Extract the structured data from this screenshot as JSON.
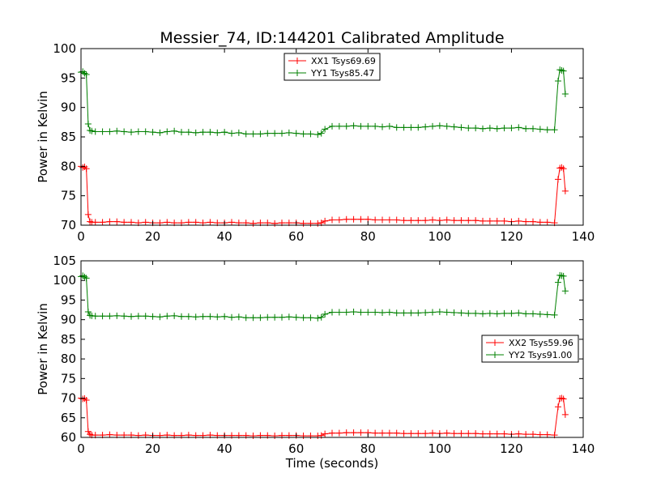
{
  "chart_data": [
    {
      "type": "line",
      "title": "Messier_74, ID:144201 Calibrated Amplitude",
      "xlabel": "",
      "ylabel": "Power in Kelvin",
      "xlim": [
        0,
        140
      ],
      "ylim": [
        70,
        100
      ],
      "xticks": [
        0,
        20,
        40,
        60,
        80,
        100,
        120,
        140
      ],
      "yticks": [
        70,
        75,
        80,
        85,
        90,
        95,
        100
      ],
      "grid": false,
      "legend_position": "top-center",
      "series": [
        {
          "name": "XX1 Tsys69.69",
          "color": "#ff0000",
          "marker": "plus",
          "x": [
            0,
            0.5,
            1,
            1.5,
            2,
            2.5,
            3,
            4,
            6,
            8,
            10,
            12,
            14,
            16,
            18,
            20,
            22,
            24,
            26,
            28,
            30,
            32,
            34,
            36,
            38,
            40,
            42,
            44,
            46,
            48,
            50,
            52,
            54,
            56,
            58,
            60,
            62,
            64,
            66,
            67,
            68,
            70,
            72,
            74,
            76,
            78,
            80,
            82,
            84,
            86,
            88,
            90,
            92,
            94,
            96,
            98,
            100,
            102,
            104,
            106,
            108,
            110,
            112,
            114,
            116,
            118,
            120,
            122,
            124,
            126,
            128,
            130,
            132,
            133,
            133.5,
            134,
            134.5,
            135
          ],
          "y": [
            80,
            79.8,
            79.9,
            79.6,
            71.8,
            70.6,
            70.5,
            70.5,
            70.5,
            70.6,
            70.6,
            70.5,
            70.5,
            70.4,
            70.5,
            70.4,
            70.4,
            70.5,
            70.4,
            70.4,
            70.5,
            70.5,
            70.4,
            70.5,
            70.4,
            70.4,
            70.5,
            70.4,
            70.4,
            70.3,
            70.4,
            70.4,
            70.3,
            70.4,
            70.4,
            70.4,
            70.3,
            70.3,
            70.3,
            70.4,
            70.7,
            70.9,
            70.9,
            71.0,
            71.0,
            71.0,
            71.0,
            70.9,
            70.9,
            70.9,
            70.9,
            70.8,
            70.8,
            70.8,
            70.8,
            70.9,
            70.8,
            70.9,
            70.8,
            70.8,
            70.8,
            70.8,
            70.7,
            70.7,
            70.7,
            70.7,
            70.6,
            70.7,
            70.6,
            70.6,
            70.5,
            70.5,
            70.4,
            77.8,
            79.7,
            79.8,
            79.6,
            75.8
          ]
        },
        {
          "name": "YY1 Tsys85.47",
          "color": "#008000",
          "marker": "plus",
          "x": [
            0,
            0.5,
            1,
            1.5,
            2,
            2.5,
            3,
            4,
            6,
            8,
            10,
            12,
            14,
            16,
            18,
            20,
            22,
            24,
            26,
            28,
            30,
            32,
            34,
            36,
            38,
            40,
            42,
            44,
            46,
            48,
            50,
            52,
            54,
            56,
            58,
            60,
            62,
            64,
            66,
            67,
            68,
            70,
            72,
            74,
            76,
            78,
            80,
            82,
            84,
            86,
            88,
            90,
            92,
            94,
            96,
            98,
            100,
            102,
            104,
            106,
            108,
            110,
            112,
            114,
            116,
            118,
            120,
            122,
            124,
            126,
            128,
            130,
            132,
            133,
            133.5,
            134,
            134.5,
            135
          ],
          "y": [
            96,
            96.1,
            95.8,
            95.6,
            87.2,
            86.1,
            86.0,
            85.9,
            85.9,
            85.9,
            86.0,
            85.9,
            85.8,
            85.9,
            85.9,
            85.8,
            85.7,
            85.9,
            86.0,
            85.8,
            85.8,
            85.7,
            85.8,
            85.8,
            85.7,
            85.8,
            85.6,
            85.7,
            85.5,
            85.5,
            85.5,
            85.6,
            85.6,
            85.6,
            85.7,
            85.6,
            85.5,
            85.5,
            85.4,
            85.6,
            86.3,
            86.8,
            86.8,
            86.8,
            86.9,
            86.8,
            86.8,
            86.8,
            86.7,
            86.8,
            86.6,
            86.6,
            86.6,
            86.6,
            86.7,
            86.8,
            86.9,
            86.8,
            86.7,
            86.6,
            86.5,
            86.5,
            86.4,
            86.5,
            86.4,
            86.5,
            86.5,
            86.6,
            86.4,
            86.4,
            86.3,
            86.2,
            86.2,
            94.5,
            96.4,
            96.3,
            96.2,
            92.3
          ]
        }
      ]
    },
    {
      "type": "line",
      "title": "",
      "xlabel": "Time (seconds)",
      "ylabel": "Power in Kelvin",
      "xlim": [
        0,
        140
      ],
      "ylim": [
        60,
        105
      ],
      "xticks": [
        0,
        20,
        40,
        60,
        80,
        100,
        120,
        140
      ],
      "yticks": [
        60,
        65,
        70,
        75,
        80,
        85,
        90,
        95,
        100,
        105
      ],
      "grid": false,
      "legend_position": "center-right",
      "series": [
        {
          "name": "XX2 Tsys59.96",
          "color": "#ff0000",
          "marker": "plus",
          "x": [
            0,
            0.5,
            1,
            1.5,
            2,
            2.5,
            3,
            4,
            6,
            8,
            10,
            12,
            14,
            16,
            18,
            20,
            22,
            24,
            26,
            28,
            30,
            32,
            34,
            36,
            38,
            40,
            42,
            44,
            46,
            48,
            50,
            52,
            54,
            56,
            58,
            60,
            62,
            64,
            66,
            67,
            68,
            70,
            72,
            74,
            76,
            78,
            80,
            82,
            84,
            86,
            88,
            90,
            92,
            94,
            96,
            98,
            100,
            102,
            104,
            106,
            108,
            110,
            112,
            114,
            116,
            118,
            120,
            122,
            124,
            126,
            128,
            130,
            132,
            133,
            133.5,
            134,
            134.5,
            135
          ],
          "y": [
            70,
            69.8,
            69.9,
            69.5,
            61.5,
            60.8,
            60.6,
            60.6,
            60.6,
            60.7,
            60.6,
            60.6,
            60.6,
            60.5,
            60.6,
            60.5,
            60.5,
            60.6,
            60.5,
            60.5,
            60.6,
            60.5,
            60.5,
            60.6,
            60.5,
            60.5,
            60.5,
            60.5,
            60.5,
            60.4,
            60.5,
            60.5,
            60.4,
            60.5,
            60.5,
            60.5,
            60.4,
            60.4,
            60.4,
            60.5,
            60.9,
            61.1,
            61.1,
            61.2,
            61.2,
            61.2,
            61.2,
            61.1,
            61.1,
            61.1,
            61.1,
            61.0,
            61.0,
            61.0,
            61.0,
            61.1,
            61.0,
            61.1,
            61.0,
            61.0,
            61.0,
            61.0,
            60.9,
            60.9,
            60.9,
            60.9,
            60.8,
            60.9,
            60.8,
            60.8,
            60.7,
            60.7,
            60.6,
            67.8,
            69.9,
            70.0,
            69.8,
            65.8
          ]
        },
        {
          "name": "YY2 Tsys91.00",
          "color": "#008000",
          "marker": "plus",
          "x": [
            0,
            0.5,
            1,
            1.5,
            2,
            2.5,
            3,
            4,
            6,
            8,
            10,
            12,
            14,
            16,
            18,
            20,
            22,
            24,
            26,
            28,
            30,
            32,
            34,
            36,
            38,
            40,
            42,
            44,
            46,
            48,
            50,
            52,
            54,
            56,
            58,
            60,
            62,
            64,
            66,
            67,
            68,
            70,
            72,
            74,
            76,
            78,
            80,
            82,
            84,
            86,
            88,
            90,
            92,
            94,
            96,
            98,
            100,
            102,
            104,
            106,
            108,
            110,
            112,
            114,
            116,
            118,
            120,
            122,
            124,
            126,
            128,
            130,
            132,
            133,
            133.5,
            134,
            134.5,
            135
          ],
          "y": [
            101,
            101.2,
            100.9,
            100.6,
            92.0,
            91.1,
            91.0,
            90.9,
            90.9,
            90.9,
            91.0,
            90.9,
            90.8,
            90.9,
            90.9,
            90.8,
            90.7,
            90.9,
            91.0,
            90.8,
            90.8,
            90.7,
            90.8,
            90.8,
            90.7,
            90.8,
            90.6,
            90.7,
            90.5,
            90.5,
            90.5,
            90.6,
            90.6,
            90.6,
            90.7,
            90.6,
            90.5,
            90.5,
            90.4,
            90.6,
            91.4,
            91.9,
            91.9,
            91.9,
            92.0,
            91.9,
            91.9,
            91.9,
            91.8,
            91.9,
            91.7,
            91.7,
            91.7,
            91.7,
            91.8,
            91.9,
            92.0,
            91.9,
            91.8,
            91.7,
            91.6,
            91.6,
            91.5,
            91.6,
            91.5,
            91.6,
            91.6,
            91.7,
            91.5,
            91.5,
            91.4,
            91.3,
            91.2,
            99.5,
            101.3,
            101.2,
            101.1,
            97.3
          ]
        }
      ]
    }
  ]
}
